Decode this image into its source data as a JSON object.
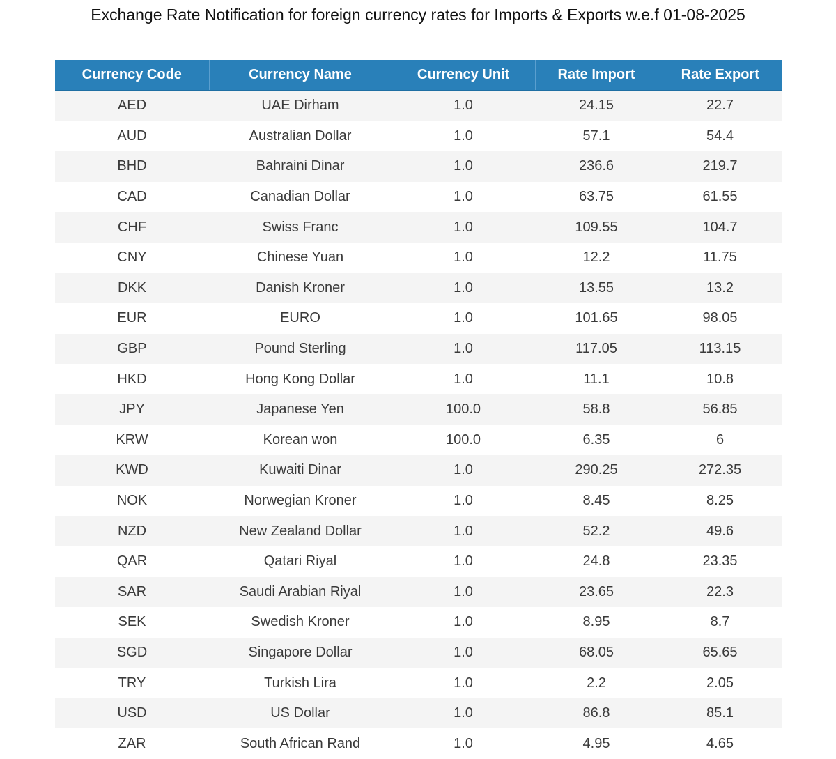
{
  "title": "Exchange Rate Notification for foreign currency rates for Imports & Exports w.e.f 01-08-2025",
  "table": {
    "headers": [
      "Currency Code",
      "Currency Name",
      "Currency Unit",
      "Rate Import",
      "Rate Export"
    ],
    "rows": [
      [
        "AED",
        "UAE Dirham",
        "1.0",
        "24.15",
        "22.7"
      ],
      [
        "AUD",
        "Australian Dollar",
        "1.0",
        "57.1",
        "54.4"
      ],
      [
        "BHD",
        "Bahraini Dinar",
        "1.0",
        "236.6",
        "219.7"
      ],
      [
        "CAD",
        "Canadian Dollar",
        "1.0",
        "63.75",
        "61.55"
      ],
      [
        "CHF",
        "Swiss Franc",
        "1.0",
        "109.55",
        "104.7"
      ],
      [
        "CNY",
        "Chinese Yuan",
        "1.0",
        "12.2",
        "11.75"
      ],
      [
        "DKK",
        "Danish Kroner",
        "1.0",
        "13.55",
        "13.2"
      ],
      [
        "EUR",
        "EURO",
        "1.0",
        "101.65",
        "98.05"
      ],
      [
        "GBP",
        "Pound Sterling",
        "1.0",
        "117.05",
        "113.15"
      ],
      [
        "HKD",
        "Hong Kong Dollar",
        "1.0",
        "11.1",
        "10.8"
      ],
      [
        "JPY",
        "Japanese Yen",
        "100.0",
        "58.8",
        "56.85"
      ],
      [
        "KRW",
        "Korean won",
        "100.0",
        "6.35",
        "6"
      ],
      [
        "KWD",
        "Kuwaiti Dinar",
        "1.0",
        "290.25",
        "272.35"
      ],
      [
        "NOK",
        "Norwegian Kroner",
        "1.0",
        "8.45",
        "8.25"
      ],
      [
        "NZD",
        "New Zealand Dollar",
        "1.0",
        "52.2",
        "49.6"
      ],
      [
        "QAR",
        "Qatari Riyal",
        "1.0",
        "24.8",
        "23.35"
      ],
      [
        "SAR",
        "Saudi Arabian Riyal",
        "1.0",
        "23.65",
        "22.3"
      ],
      [
        "SEK",
        "Swedish Kroner",
        "1.0",
        "8.95",
        "8.7"
      ],
      [
        "SGD",
        "Singapore Dollar",
        "1.0",
        "68.05",
        "65.65"
      ],
      [
        "TRY",
        "Turkish Lira",
        "1.0",
        "2.2",
        "2.05"
      ],
      [
        "USD",
        "US Dollar",
        "1.0",
        "86.8",
        "85.1"
      ],
      [
        "ZAR",
        "South African Rand",
        "1.0",
        "4.95",
        "4.65"
      ]
    ]
  },
  "colors": {
    "header_background": "#2980b9",
    "header_text": "#ffffff",
    "row_stripe": "#f4f4f4"
  }
}
